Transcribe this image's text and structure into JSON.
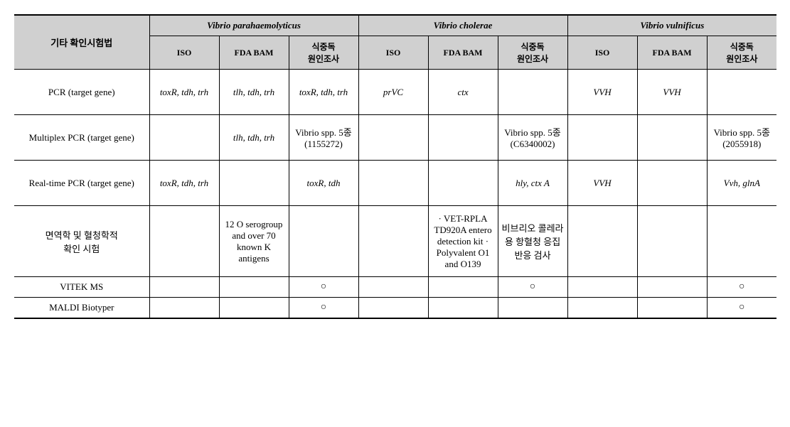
{
  "columns": {
    "rowheader": "기타 확인시험법",
    "groups": [
      "Vibrio parahaemolyticus",
      "Vibrio cholerae",
      "Vibrio vulnificus"
    ],
    "subs": [
      "ISO",
      "FDA BAM",
      "식중독\n원인조사",
      "ISO",
      "FDA BAM",
      "식중독\n원인조사",
      "ISO",
      "FDA BAM",
      "식중독\n원인조사"
    ]
  },
  "rows": [
    {
      "label": "PCR (target gene)",
      "cells": [
        "toxR, tdh, trh",
        "tlh, tdh, trh",
        "toxR, tdh, trh",
        "prVC",
        "ctx",
        "",
        "VVH",
        "VVH",
        ""
      ],
      "ital": [
        1,
        1,
        1,
        1,
        1,
        0,
        1,
        1,
        0
      ],
      "h": "r-tall"
    },
    {
      "label": "Multiplex PCR (target gene)",
      "cells": [
        "",
        "tlh, tdh, trh",
        "Vibrio spp. 5종 (1155272)",
        "",
        "",
        "Vibrio spp. 5종 (C6340002)",
        "",
        "",
        "Vibrio spp. 5종 (2055918)"
      ],
      "ital": [
        0,
        1,
        0,
        0,
        0,
        0,
        0,
        0,
        0
      ],
      "h": "r-tall"
    },
    {
      "label": "Real-time PCR (target gene)",
      "cells": [
        "toxR, tdh, trh",
        "",
        "toxR, tdh",
        "",
        "",
        "hly, ctx A",
        "VVH",
        "",
        "Vvh, glnA"
      ],
      "ital": [
        1,
        0,
        1,
        0,
        0,
        1,
        1,
        0,
        1
      ],
      "h": "r-tall"
    },
    {
      "label": "면역학 및 혈청학적\n확인 시험",
      "cells": [
        "",
        "12 O serogroup and over 70 known K antigens",
        "",
        "",
        "· VET-RPLA TD920A entero detection kit · Polyvalent O1 and O139",
        "비브리오 콜레라용 항혈청 응집반응 검사",
        "",
        "",
        ""
      ],
      "ital": [
        0,
        0,
        0,
        0,
        0,
        0,
        0,
        0,
        0
      ],
      "h": "r-xtall"
    },
    {
      "label": "VITEK MS",
      "cells": [
        "",
        "",
        "○",
        "",
        "",
        "○",
        "",
        "",
        "○"
      ],
      "ital": [
        0,
        0,
        0,
        0,
        0,
        0,
        0,
        0,
        0
      ],
      "h": "r-short"
    },
    {
      "label": "MALDI Biotyper",
      "cells": [
        "",
        "",
        "○",
        "",
        "",
        "",
        "",
        "",
        "○"
      ],
      "ital": [
        0,
        0,
        0,
        0,
        0,
        0,
        0,
        0,
        0
      ],
      "h": "r-short"
    }
  ],
  "style": {
    "background_color": "#ffffff",
    "header_bg": "#d0d0d0",
    "border_color": "#000000",
    "font_family": "Times New Roman",
    "circle_mark": "○"
  }
}
